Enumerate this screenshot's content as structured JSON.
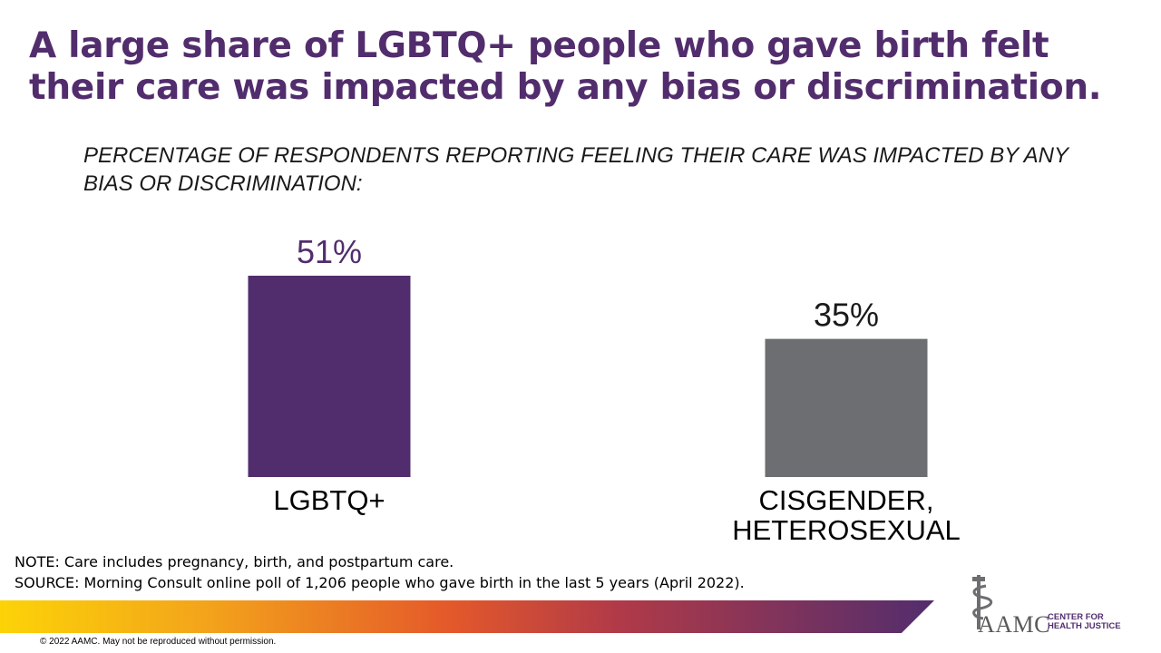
{
  "slide": {
    "title": "A large share of LGBTQ+ people who gave birth felt their care was impacted by any bias or discrimination.",
    "subtitle": "PERCENTAGE OF RESPONDENTS REPORTING FEELING THEIR CARE WAS IMPACTED BY ANY BIAS OR DISCRIMINATION:",
    "note": "NOTE: Care includes pregnancy, birth, and postpartum care.",
    "source": "SOURCE: Morning Consult online poll of 1,206 people who gave birth in the last 5 years (April 2022).",
    "copyright": "© 2022 AAMC. May not be reproduced without permission.",
    "logo": {
      "icon": "caduceus-staff-icon",
      "wordmark": "AAMC",
      "line1": "CENTER FOR",
      "line2": "HEALTH JUSTICE"
    }
  },
  "chart_data": {
    "type": "bar",
    "title": "A large share of LGBTQ+ people who gave birth felt their care was impacted by any bias or discrimination.",
    "subtitle": "PERCENTAGE OF RESPONDENTS REPORTING FEELING THEIR CARE WAS IMPACTED BY ANY BIAS OR DISCRIMINATION:",
    "categories": [
      [
        "LGBTQ+"
      ],
      [
        "CISGENDER,",
        "HETEROSEXUAL"
      ]
    ],
    "values": [
      51,
      35
    ],
    "labels": [
      "51%",
      "35%"
    ],
    "unit": "%",
    "colors": [
      "#522d6d",
      "#6d6e71"
    ],
    "label_colors": [
      "#522d6d",
      "#1a1a1a"
    ],
    "ylim": [
      0,
      51
    ],
    "grid": false,
    "legend": "none"
  }
}
